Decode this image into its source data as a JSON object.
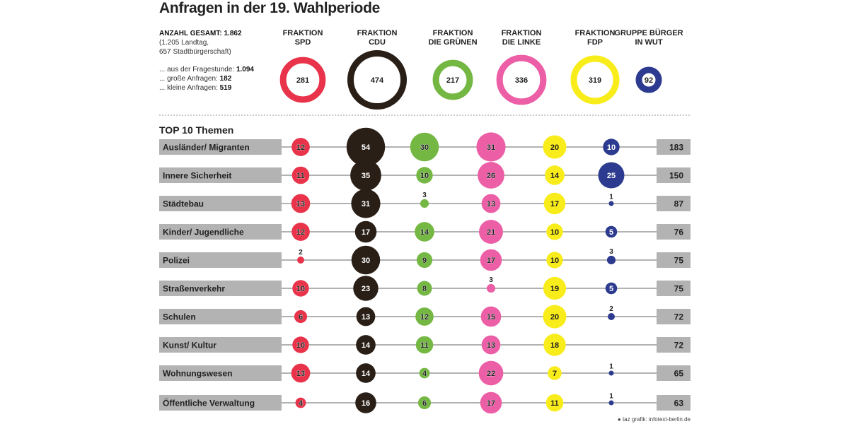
{
  "title": "Anfragen in der 19. Wahlperiode",
  "summary": {
    "total_label": "ANZAHL GESAMT:",
    "total_value": "1.862",
    "breakdown_line1": "(1.205 Landtag,",
    "breakdown_line2": "657 Stadtbürgerschaft)",
    "fragestunde_label": "... aus der Fragestunde:",
    "fragestunde_value": "1.094",
    "grosse_label": "... große Anfragen:",
    "grosse_value": "182",
    "kleine_label": "... kleine Anfragen:",
    "kleine_value": "519"
  },
  "topics_heading": "TOP 10 Themen",
  "credit": "taz grafik: infotext-berlin.de",
  "chart_data": {
    "type": "bubble-matrix",
    "parties": [
      {
        "line1": "FRAKTION",
        "line2": "SPD",
        "total": 281,
        "color": "#e8334a"
      },
      {
        "line1": "FRAKTION",
        "line2": "CDU",
        "total": 474,
        "color": "#2a1f17"
      },
      {
        "line1": "FRAKTION",
        "line2": "DIE GRÜNEN",
        "total": 217,
        "color": "#74b843"
      },
      {
        "line1": "FRAKTION",
        "line2": "DIE LINKE",
        "total": 336,
        "color": "#ec5ea6"
      },
      {
        "line1": "FRAKTION",
        "line2": "FDP",
        "total": 319,
        "color": "#f8ec1a"
      },
      {
        "line1": "GRUPPE BÜRGER",
        "line2": "IN WUT",
        "total": 92,
        "color": "#2c3b8f"
      }
    ],
    "topics": [
      {
        "name": "Ausländer/ Migranten",
        "values": [
          12,
          54,
          30,
          31,
          20,
          10
        ],
        "total": 183
      },
      {
        "name": "Innere Sicherheit",
        "values": [
          11,
          35,
          10,
          26,
          14,
          25
        ],
        "total": 150
      },
      {
        "name": "Städtebau",
        "values": [
          13,
          31,
          3,
          13,
          17,
          1
        ],
        "total": 87
      },
      {
        "name": "Kinder/ Jugendliche",
        "values": [
          12,
          17,
          14,
          21,
          10,
          5
        ],
        "total": 76
      },
      {
        "name": "Polizei",
        "values": [
          2,
          30,
          9,
          17,
          10,
          3
        ],
        "total": 75
      },
      {
        "name": "Straßenverkehr",
        "values": [
          10,
          23,
          8,
          3,
          19,
          5
        ],
        "total": 75
      },
      {
        "name": "Schulen",
        "values": [
          6,
          13,
          12,
          15,
          20,
          2
        ],
        "total": 72
      },
      {
        "name": "Kunst/ Kultur",
        "values": [
          10,
          14,
          11,
          13,
          18,
          null
        ],
        "total": 72
      },
      {
        "name": "Wohnungswesen",
        "values": [
          13,
          14,
          4,
          22,
          7,
          1
        ],
        "total": 65
      },
      {
        "name": "Öffentliche Verwaltung",
        "values": [
          4,
          16,
          6,
          17,
          11,
          1
        ],
        "total": 63
      }
    ]
  }
}
